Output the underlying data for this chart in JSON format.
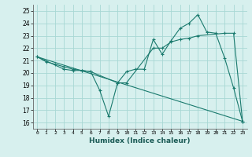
{
  "title": "",
  "xlabel": "Humidex (Indice chaleur)",
  "bg_color": "#d7f0ee",
  "grid_color": "#a8d8d4",
  "line_color": "#1a7a6e",
  "xlim": [
    -0.5,
    23.5
  ],
  "ylim": [
    15.5,
    25.5
  ],
  "xticks": [
    0,
    1,
    2,
    3,
    4,
    5,
    6,
    7,
    8,
    9,
    10,
    11,
    12,
    13,
    14,
    15,
    16,
    17,
    18,
    19,
    20,
    21,
    22,
    23
  ],
  "yticks": [
    16,
    17,
    18,
    19,
    20,
    21,
    22,
    23,
    24,
    25
  ],
  "line1_x": [
    0,
    1,
    2,
    3,
    4,
    5,
    6,
    7,
    8,
    9,
    10,
    11,
    12,
    13,
    14,
    15,
    16,
    17,
    18,
    19,
    20,
    21,
    22,
    23
  ],
  "line1_y": [
    21.3,
    20.9,
    20.7,
    20.5,
    20.3,
    20.2,
    20.1,
    18.6,
    16.5,
    19.2,
    20.1,
    20.3,
    20.3,
    22.7,
    21.5,
    22.6,
    23.6,
    24.0,
    24.7,
    23.3,
    23.2,
    21.2,
    18.8,
    16.1
  ],
  "line2_x": [
    0,
    3,
    4,
    5,
    6,
    9,
    10,
    13,
    14,
    15,
    16,
    17,
    18,
    21,
    22,
    23
  ],
  "line2_y": [
    21.3,
    20.3,
    20.2,
    20.2,
    20.1,
    19.2,
    19.2,
    22.0,
    22.0,
    22.5,
    22.7,
    22.8,
    23.0,
    23.2,
    23.2,
    16.1
  ],
  "line3_x": [
    0,
    23
  ],
  "line3_y": [
    21.3,
    16.1
  ]
}
